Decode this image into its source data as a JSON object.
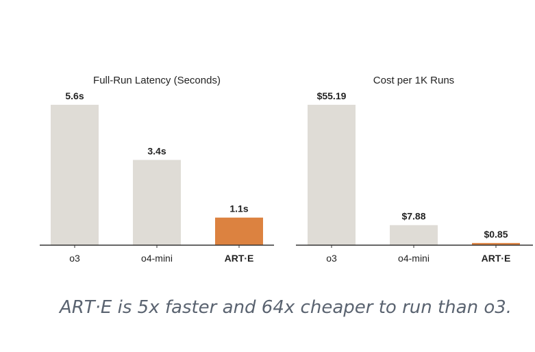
{
  "chart_data": [
    {
      "type": "bar",
      "title": "Full-Run Latency (Seconds)",
      "categories": [
        "o3",
        "o4-mini",
        "ART·E"
      ],
      "values": [
        5.6,
        3.4,
        1.1
      ],
      "value_labels": [
        "5.6s",
        "3.4s",
        "1.1s"
      ],
      "ylim": [
        0,
        5.6
      ],
      "highlight_index": 2,
      "colors": {
        "base": "#dfdcd6",
        "highlight": "#dc8240",
        "axis": "#333333"
      },
      "grid": false
    },
    {
      "type": "bar",
      "title": "Cost per 1K Runs",
      "categories": [
        "o3",
        "o4-mini",
        "ART·E"
      ],
      "values": [
        55.19,
        7.88,
        0.85
      ],
      "value_labels": [
        "$55.19",
        "$7.88",
        "$0.85"
      ],
      "ylim": [
        0,
        55.19
      ],
      "highlight_index": 2,
      "colors": {
        "base": "#dfdcd6",
        "highlight": "#dc8240",
        "axis": "#333333"
      },
      "grid": false
    }
  ],
  "caption": "ART·E is 5x faster and 64x cheaper to run than o3."
}
